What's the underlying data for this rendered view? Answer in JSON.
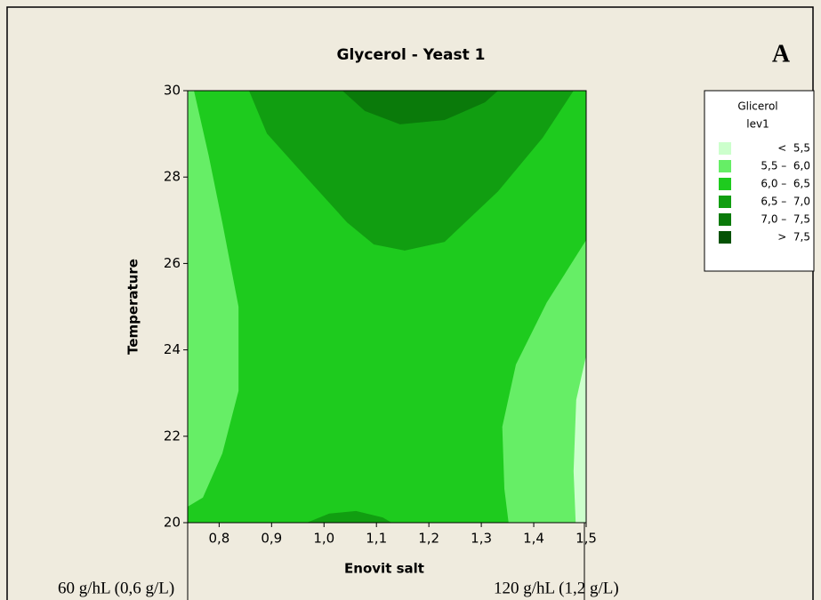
{
  "chart_data": {
    "type": "contour",
    "title": "Glycerol - Yeast 1",
    "panel_label": "A",
    "xlabel": "Enovit salt",
    "ylabel": "Temperature",
    "xlim": [
      0.74,
      1.5
    ],
    "ylim": [
      20,
      30
    ],
    "xticks": [
      {
        "value": 0.8,
        "label": "0,8"
      },
      {
        "value": 0.9,
        "label": "0,9"
      },
      {
        "value": 1.0,
        "label": "1,0"
      },
      {
        "value": 1.1,
        "label": "1,1"
      },
      {
        "value": 1.2,
        "label": "1,2"
      },
      {
        "value": 1.3,
        "label": "1,3"
      },
      {
        "value": 1.4,
        "label": "1,4"
      },
      {
        "value": 1.5,
        "label": "1,5"
      }
    ],
    "yticks": [
      20,
      22,
      24,
      26,
      28,
      30
    ],
    "legend_title": [
      "Glicerol",
      "lev1"
    ],
    "legend": [
      {
        "label": "<  5,5",
        "color": "#ccffcc"
      },
      {
        "label": "5,5 –  6,0",
        "color": "#66ee66"
      },
      {
        "label": "6,0 –  6,5",
        "color": "#1ecb1e"
      },
      {
        "label": "6,5 –  7,0",
        "color": "#119e11"
      },
      {
        "label": "7,0 –  7,5",
        "color": "#0a7a0a"
      },
      {
        "label": ">  7,5",
        "color": "#045204"
      }
    ],
    "background_level": 2,
    "regions": [
      {
        "level": 1,
        "points": [
          [
            0.74,
            30
          ],
          [
            0.752,
            30
          ],
          [
            0.78,
            28.5
          ],
          [
            0.806,
            26.95
          ],
          [
            0.837,
            25.0
          ],
          [
            0.837,
            23.05
          ],
          [
            0.806,
            21.6
          ],
          [
            0.769,
            20.58
          ],
          [
            0.74,
            20.37
          ]
        ]
      },
      {
        "level": 1,
        "points": [
          [
            1.5,
            26.54
          ],
          [
            1.425,
            25.1
          ],
          [
            1.366,
            23.66
          ],
          [
            1.34,
            22.22
          ],
          [
            1.344,
            20.78
          ],
          [
            1.352,
            20
          ],
          [
            1.5,
            20
          ]
        ]
      },
      {
        "level": 0,
        "points": [
          [
            1.5,
            23.87
          ],
          [
            1.481,
            22.84
          ],
          [
            1.476,
            21.19
          ],
          [
            1.48,
            20
          ],
          [
            1.5,
            20
          ]
        ]
      },
      {
        "level": 3,
        "points": [
          [
            0.857,
            30
          ],
          [
            0.891,
            29.01
          ],
          [
            0.967,
            27.98
          ],
          [
            1.044,
            26.95
          ],
          [
            1.095,
            26.44
          ],
          [
            1.154,
            26.3
          ],
          [
            1.23,
            26.5
          ],
          [
            1.332,
            27.67
          ],
          [
            1.417,
            28.91
          ],
          [
            1.476,
            30
          ]
        ]
      },
      {
        "level": 4,
        "points": [
          [
            1.035,
            30
          ],
          [
            1.078,
            29.53
          ],
          [
            1.145,
            29.22
          ],
          [
            1.23,
            29.32
          ],
          [
            1.307,
            29.73
          ],
          [
            1.332,
            30
          ]
        ]
      },
      {
        "level": 3,
        "points": [
          [
            0.967,
            20
          ],
          [
            1.01,
            20.21
          ],
          [
            1.061,
            20.27
          ],
          [
            1.112,
            20.12
          ],
          [
            1.129,
            20
          ]
        ]
      }
    ],
    "annotations": [
      "60 g/hL (0,6 g/L)",
      "120 g/hL (1,2 g/L)"
    ]
  }
}
